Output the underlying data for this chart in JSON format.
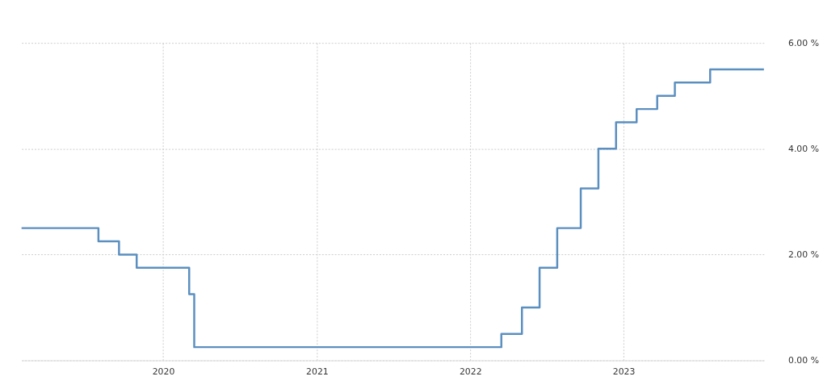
{
  "chart_data": {
    "type": "step",
    "x": [
      "2019-01-29",
      "2019-07-31",
      "2019-09-18",
      "2019-10-30",
      "2020-03-03",
      "2020-03-15",
      "2022-03-16",
      "2022-05-04",
      "2022-06-15",
      "2022-07-27",
      "2022-09-21",
      "2022-11-02",
      "2022-12-14",
      "2023-02-01",
      "2023-03-22",
      "2023-05-03",
      "2023-07-26",
      "2023-12-01"
    ],
    "series": [
      {
        "color": "#5b8fc0",
        "values": [
          2.5,
          2.25,
          2.0,
          1.75,
          1.25,
          0.25,
          0.5,
          1.0,
          1.75,
          2.5,
          3.25,
          4.0,
          4.5,
          4.75,
          5.0,
          5.25,
          5.5,
          5.5
        ]
      }
    ],
    "xlim": [
      "2019-01-29",
      "2023-12-01"
    ],
    "xticks": [
      "2020",
      "2021",
      "2022",
      "2023"
    ],
    "ylim": [
      0,
      6
    ],
    "yticks": [
      {
        "value": 0,
        "label": "0.00 %"
      },
      {
        "value": 2,
        "label": "2.00 %"
      },
      {
        "value": 4,
        "label": "4.00 %"
      },
      {
        "value": 6,
        "label": "6.00 %"
      }
    ],
    "grid": true,
    "line_style": "solid",
    "marker": "none"
  }
}
